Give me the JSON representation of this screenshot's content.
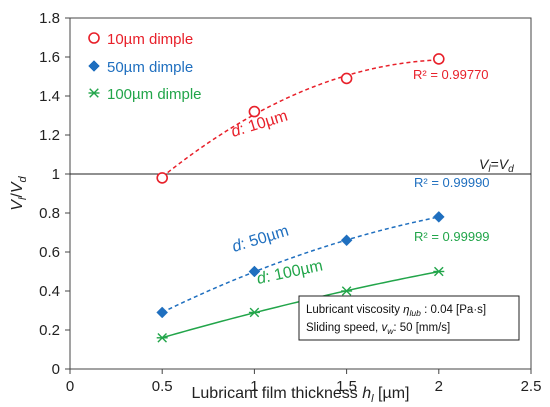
{
  "chart_data": {
    "type": "scatter",
    "xlabel": "Lubricant film thickness h_l [µm]",
    "ylabel": "V_l/V_d",
    "xlim": [
      0,
      2.5
    ],
    "ylim": [
      0,
      1.8
    ],
    "x_ticks": [
      "0",
      "0.5",
      "1",
      "1.5",
      "2",
      "2.5"
    ],
    "y_ticks": [
      "0",
      "0.2",
      "0.4",
      "0.6",
      "0.8",
      "1",
      "1.2",
      "1.4",
      "1.6",
      "1.8"
    ],
    "grid": false,
    "legend": "top-left",
    "series": [
      {
        "name": "10µm dimple",
        "marker": "open-circle",
        "color": "#e8202a",
        "line": "dashed-poly",
        "x": [
          0.5,
          1.0,
          1.5,
          2.0
        ],
        "y": [
          0.98,
          1.32,
          1.49,
          1.59
        ],
        "r2": "R² = 0.99770",
        "curve_label": "d: 10µm"
      },
      {
        "name": "50µm dimple",
        "marker": "diamond",
        "color": "#1f6fbf",
        "line": "dashed",
        "x": [
          0.5,
          1.0,
          1.5,
          2.0
        ],
        "y": [
          0.29,
          0.5,
          0.66,
          0.78
        ],
        "r2": "R² = 0.99990",
        "curve_label": "d: 50µm"
      },
      {
        "name": "100µm dimple",
        "marker": "asterisk",
        "color": "#22a54a",
        "line": "solid",
        "x": [
          0.5,
          1.0,
          1.5,
          2.0
        ],
        "y": [
          0.16,
          0.29,
          0.4,
          0.5
        ],
        "r2": "R² = 0.99999",
        "curve_label": "d: 100µm"
      }
    ],
    "reference_line": {
      "y": 1.0,
      "label": "V_l=V_d"
    },
    "note": {
      "line1_prefix": "Lubricant viscosity ",
      "line1_symbol": "η",
      "line1_sub": "lub",
      "line1_value": " : 0.04 [Pa·s]",
      "line2_prefix": "Sliding speed, ",
      "line2_symbol": "v",
      "line2_sub": "w",
      "line2_value": ": 50 [mm/s]"
    }
  }
}
